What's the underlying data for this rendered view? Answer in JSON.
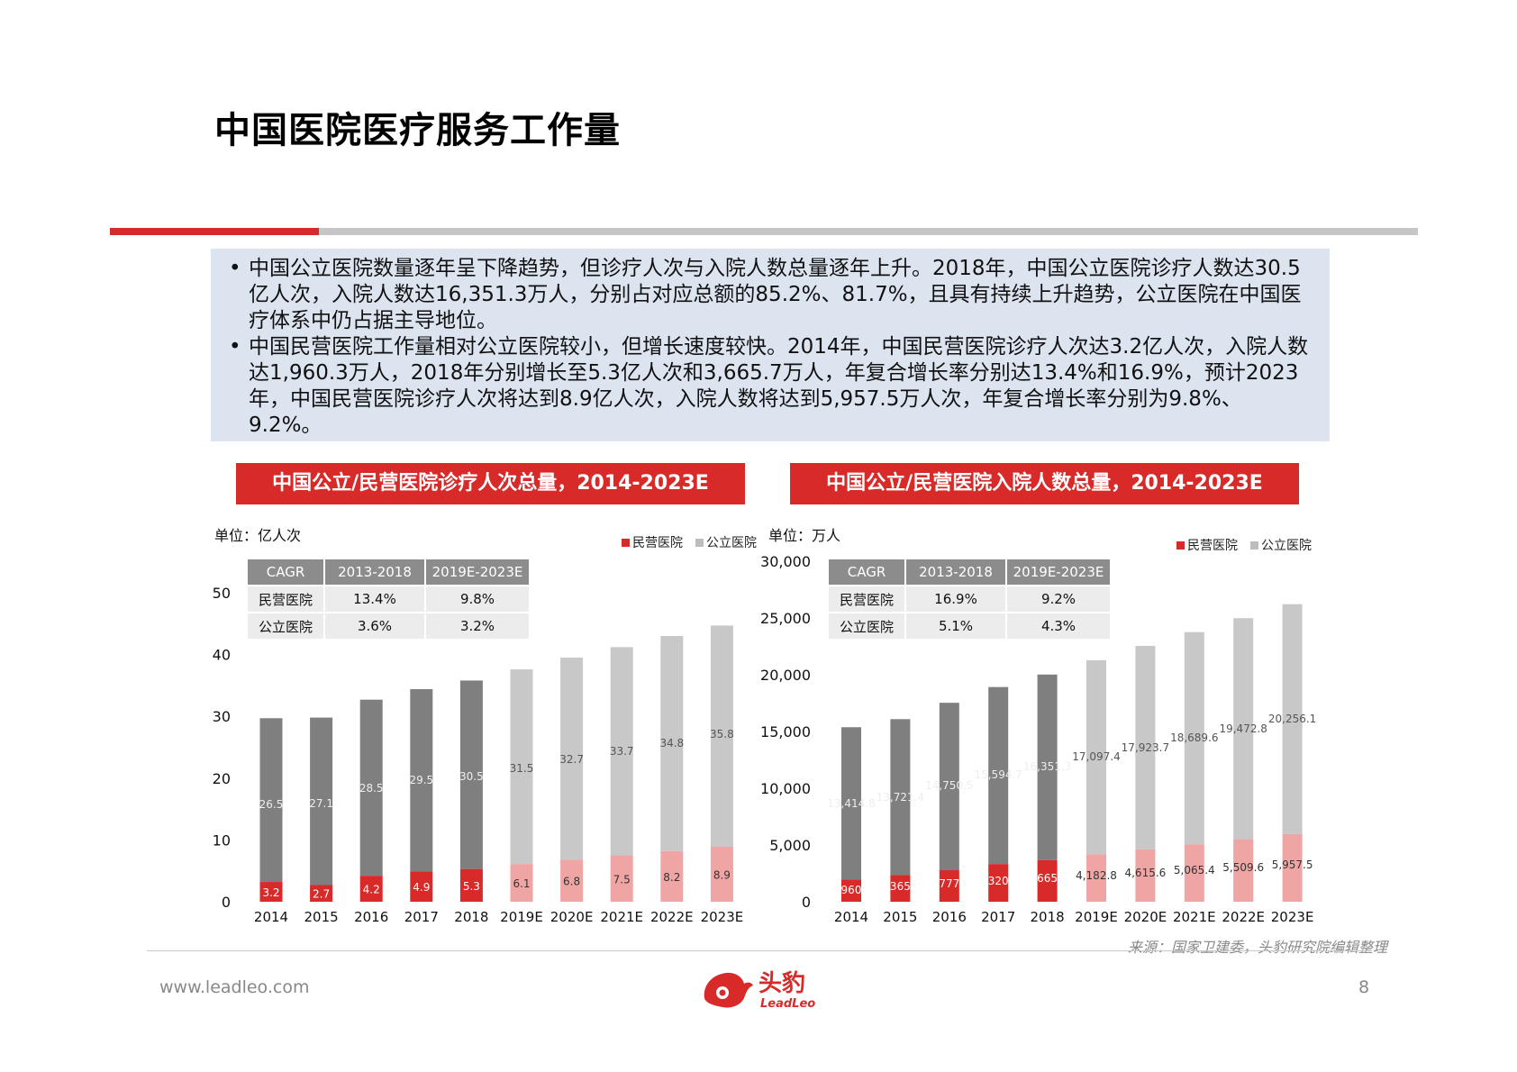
{
  "page": {
    "title": "中国医院医疗服务工作量",
    "bullets": [
      "中国公立医院数量逐年呈下降趋势，但诊疗人次与入院人数总量逐年上升。2018年，中国公立医院诊疗人数达30.5亿人次，入院人数达16,351.3万人，分别占对应总额的85.2%、81.7%，且具有持续上升趋势，公立医院在中国医疗体系中仍占据主导地位。",
      "中国民营医院工作量相对公立医院较小，但增长速度较快。2014年，中国民营医院诊疗人次达3.2亿人次，入院人数达1,960.3万人，2018年分别增长至5.3亿人次和3,665.7万人，年复合增长率分别达13.4%和16.9%，预计2023年，中国民营医院诊疗人次将达到8.9亿人次，入院人数将达到5,957.5万人次，年复合增长率分别为9.8%、9.2%。"
    ],
    "source": "来源：国家卫建委，头豹研究院编辑整理",
    "website": "www.leadleo.com",
    "page_number": "8",
    "logo_cn": "头豹",
    "logo_en": "LeadLeo"
  },
  "colors": {
    "accent": "#d92a2a",
    "private_actual": "#d92a2a",
    "private_forecast": "#f0a5a5",
    "public_actual": "#7f7f7f",
    "public_forecast": "#c8c8c8",
    "box_bg": "#dce4f0"
  },
  "chart_data": [
    {
      "type": "bar",
      "stacked": true,
      "title": "中国公立/民营医院诊疗人次总量，2014-2023E",
      "unit_label": "单位：亿人次",
      "categories": [
        "2014",
        "2015",
        "2016",
        "2017",
        "2018",
        "2019E",
        "2020E",
        "2021E",
        "2022E",
        "2023E"
      ],
      "series": [
        {
          "name": "民营医院",
          "values": [
            3.2,
            2.7,
            4.2,
            4.9,
            5.3,
            6.1,
            6.8,
            7.5,
            8.2,
            8.9
          ],
          "labels": [
            "3.2",
            "2.7",
            "4.2",
            "4.9",
            "5.3",
            "6.1",
            "6.8",
            "7.5",
            "8.2",
            "8.9"
          ]
        },
        {
          "name": "公立医院",
          "values": [
            26.5,
            27.1,
            28.5,
            29.5,
            30.5,
            31.5,
            32.7,
            33.7,
            34.8,
            35.8
          ],
          "labels": [
            "26.5",
            "27.1",
            "28.5",
            "29.5",
            "30.5",
            "31.5",
            "32.7",
            "33.7",
            "34.8",
            "35.8"
          ]
        }
      ],
      "forecast_from_index": 5,
      "ylim": [
        0,
        50
      ],
      "yticks": [
        "0",
        "10",
        "20",
        "30",
        "40",
        "50"
      ],
      "legend": [
        "民营医院",
        "公立医院"
      ],
      "legend_position": "top-right",
      "cagr_table": {
        "headers": [
          "CAGR",
          "2013-2018",
          "2019E-2023E"
        ],
        "rows": [
          [
            "民营医院",
            "13.4%",
            "9.8%"
          ],
          [
            "公立医院",
            "3.6%",
            "3.2%"
          ]
        ]
      }
    },
    {
      "type": "bar",
      "stacked": true,
      "title": "中国公立/民营医院入院人数总量，2014-2023E",
      "unit_label": "单位：万人",
      "categories": [
        "2014",
        "2015",
        "2016",
        "2017",
        "2018",
        "2019E",
        "2020E",
        "2021E",
        "2022E",
        "2023E"
      ],
      "series": [
        {
          "name": "民营医院",
          "values": [
            1960.3,
            2365.4,
            2777.2,
            3320.7,
            3665.7,
            4182.8,
            4615.6,
            5065.4,
            5509.6,
            5957.5
          ],
          "labels": [
            "1,960.3",
            "2,365.4",
            "2,777.2",
            "3,320.7",
            "3,665.7",
            "4,182.8",
            "4,615.6",
            "5,065.4",
            "5,509.6",
            "5,957.5"
          ]
        },
        {
          "name": "公立医院",
          "values": [
            13414.8,
            13721.4,
            14750.5,
            15594.7,
            16351.3,
            17097.4,
            17923.7,
            18689.6,
            19472.8,
            20256.1
          ],
          "labels": [
            "13,414.8",
            "13,721.4",
            "14,750.5",
            "15,594.7",
            "16,351.3",
            "17,097.4",
            "17,923.7",
            "18,689.6",
            "19,472.8",
            "20,256.1"
          ]
        }
      ],
      "forecast_from_index": 5,
      "ylim": [
        0,
        30000
      ],
      "yticks": [
        "0",
        "5,000",
        "10,000",
        "15,000",
        "20,000",
        "25,000",
        "30,000"
      ],
      "legend": [
        "民营医院",
        "公立医院"
      ],
      "legend_position": "top-right",
      "cagr_table": {
        "headers": [
          "CAGR",
          "2013-2018",
          "2019E-2023E"
        ],
        "rows": [
          [
            "民营医院",
            "16.9%",
            "9.2%"
          ],
          [
            "公立医院",
            "5.1%",
            "4.3%"
          ]
        ]
      }
    }
  ]
}
